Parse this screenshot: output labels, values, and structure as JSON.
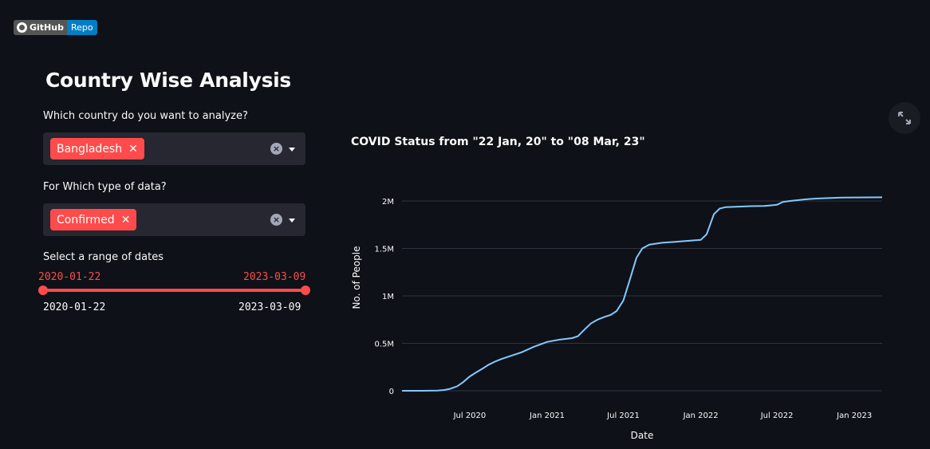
{
  "badge": {
    "left": "GitHub",
    "right": "Repo"
  },
  "page_title": "Country Wise Analysis",
  "country_select": {
    "label": "Which country do you want to analyze?",
    "selected": "Bangladesh"
  },
  "type_select": {
    "label": "For Which type of data?",
    "selected": "Confirmed"
  },
  "date_range": {
    "label": "Select a range of dates",
    "start_value": "2020-01-22",
    "end_value": "2023-03-09",
    "min": "2020-01-22",
    "max": "2023-03-09"
  },
  "colors": {
    "accent": "#ff4b4b",
    "line": "#83c9ff",
    "background": "#0e1117"
  },
  "chart_data": {
    "type": "line",
    "title": "COVID Status from \"22 Jan, 20\" to \"08 Mar, 23\"",
    "xlabel": "Date",
    "ylabel": "No. of People",
    "x_ticks": [
      "Jul 2020",
      "Jan 2021",
      "Jul 2021",
      "Jan 2022",
      "Jul 2022",
      "Jan 2023"
    ],
    "y_ticks": [
      "0",
      "0.5M",
      "1M",
      "1.5M",
      "2M"
    ],
    "ylim": [
      0,
      2100000
    ],
    "xlim": [
      "2020-01-22",
      "2023-03-08"
    ],
    "grid": true,
    "series": [
      {
        "x": [
          "2020-01-22",
          "2020-03-08",
          "2020-04-15",
          "2020-05-01",
          "2020-05-15",
          "2020-06-01",
          "2020-06-15",
          "2020-07-01",
          "2020-07-15",
          "2020-08-01",
          "2020-08-15",
          "2020-09-01",
          "2020-09-15",
          "2020-10-01",
          "2020-11-01",
          "2020-12-01",
          "2021-01-01",
          "2021-02-01",
          "2021-03-01",
          "2021-03-15",
          "2021-04-01",
          "2021-04-15",
          "2021-05-01",
          "2021-05-15",
          "2021-06-01",
          "2021-06-15",
          "2021-07-01",
          "2021-07-15",
          "2021-08-01",
          "2021-08-15",
          "2021-09-01",
          "2021-10-01",
          "2021-11-01",
          "2021-12-01",
          "2022-01-01",
          "2022-01-15",
          "2022-02-01",
          "2022-02-15",
          "2022-03-01",
          "2022-04-01",
          "2022-05-01",
          "2022-06-01",
          "2022-06-15",
          "2022-07-01",
          "2022-07-15",
          "2022-08-01",
          "2022-09-01",
          "2022-10-01",
          "2022-11-01",
          "2022-12-01",
          "2023-01-01",
          "2023-02-01",
          "2023-03-08"
        ],
        "values": [
          0,
          0,
          2000,
          8000,
          20000,
          47000,
          90000,
          150000,
          190000,
          235000,
          275000,
          312000,
          335000,
          360000,
          405000,
          465000,
          515000,
          540000,
          555000,
          575000,
          650000,
          710000,
          750000,
          775000,
          800000,
          840000,
          950000,
          1150000,
          1400000,
          1500000,
          1540000,
          1560000,
          1570000,
          1580000,
          1590000,
          1650000,
          1860000,
          1920000,
          1935000,
          1940000,
          1945000,
          1948000,
          1953000,
          1960000,
          1990000,
          2000000,
          2015000,
          2025000,
          2030000,
          2035000,
          2037000,
          2038000,
          2039000
        ]
      }
    ]
  }
}
